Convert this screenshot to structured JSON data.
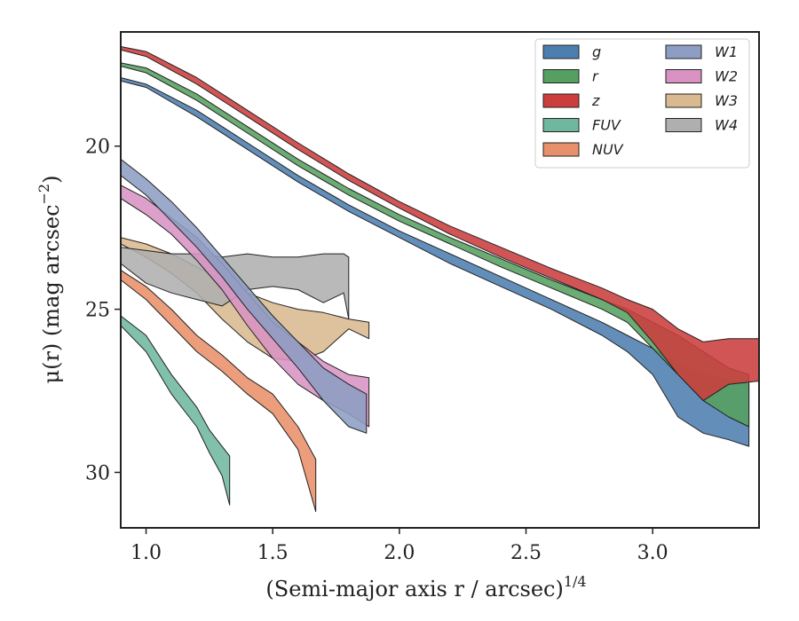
{
  "chart_data": {
    "type": "area",
    "xlabel": "(Semi-major axis r / arcsec)",
    "xlabel_exponent": "1/4",
    "ylabel": "μ(r) (mag arcsec",
    "ylabel_exponent": "−2",
    "ylabel_close": ")",
    "xlim": [
      0.9,
      3.42
    ],
    "ylim": [
      31.7,
      16.5
    ],
    "y_inverted": true,
    "xticks": [
      {
        "value": 1.0,
        "label": "1.0"
      },
      {
        "value": 1.5,
        "label": "1.5"
      },
      {
        "value": 2.0,
        "label": "2.0"
      },
      {
        "value": 2.5,
        "label": "2.5"
      },
      {
        "value": 3.0,
        "label": "3.0"
      }
    ],
    "yticks": [
      {
        "value": 20,
        "label": "20"
      },
      {
        "value": 25,
        "label": "25"
      },
      {
        "value": 30,
        "label": "30"
      }
    ],
    "grid": false,
    "legend": {
      "placement": "top-right",
      "columns": 2
    },
    "series": [
      {
        "name": "g",
        "color": "#4C7EAF",
        "points": [
          [
            0.9,
            17.9,
            18.0
          ],
          [
            1.0,
            18.1,
            18.2
          ],
          [
            1.2,
            18.9,
            19.1
          ],
          [
            1.4,
            19.9,
            20.1
          ],
          [
            1.6,
            20.9,
            21.1
          ],
          [
            1.8,
            21.8,
            22.0
          ],
          [
            2.0,
            22.6,
            22.8
          ],
          [
            2.2,
            23.3,
            23.6
          ],
          [
            2.4,
            24.0,
            24.3
          ],
          [
            2.6,
            24.7,
            25.0
          ],
          [
            2.8,
            25.4,
            25.8
          ],
          [
            2.9,
            25.8,
            26.3
          ],
          [
            3.0,
            26.2,
            27.0
          ],
          [
            3.1,
            26.7,
            28.3
          ],
          [
            3.2,
            27.0,
            28.8
          ],
          [
            3.3,
            27.2,
            29.0
          ],
          [
            3.38,
            27.3,
            29.2
          ]
        ]
      },
      {
        "name": "r",
        "color": "#55A060",
        "points": [
          [
            0.9,
            17.45,
            17.55
          ],
          [
            1.0,
            17.6,
            17.75
          ],
          [
            1.2,
            18.4,
            18.6
          ],
          [
            1.4,
            19.4,
            19.6
          ],
          [
            1.6,
            20.4,
            20.6
          ],
          [
            1.8,
            21.3,
            21.5
          ],
          [
            2.0,
            22.1,
            22.3
          ],
          [
            2.2,
            22.8,
            23.0
          ],
          [
            2.4,
            23.45,
            23.7
          ],
          [
            2.6,
            24.1,
            24.35
          ],
          [
            2.8,
            24.7,
            25.0
          ],
          [
            2.9,
            25.0,
            25.4
          ],
          [
            3.0,
            25.4,
            26.2
          ],
          [
            3.1,
            25.8,
            27.0
          ],
          [
            3.2,
            26.3,
            27.8
          ],
          [
            3.3,
            26.8,
            28.3
          ],
          [
            3.38,
            27.0,
            28.6
          ]
        ]
      },
      {
        "name": "z",
        "color": "#CC3E3E",
        "points": [
          [
            0.9,
            16.95,
            17.05
          ],
          [
            1.0,
            17.1,
            17.25
          ],
          [
            1.2,
            17.9,
            18.1
          ],
          [
            1.4,
            18.9,
            19.1
          ],
          [
            1.6,
            19.9,
            20.1
          ],
          [
            1.8,
            20.85,
            21.05
          ],
          [
            2.0,
            21.7,
            21.9
          ],
          [
            2.2,
            22.45,
            22.7
          ],
          [
            2.4,
            23.1,
            23.4
          ],
          [
            2.6,
            23.75,
            24.05
          ],
          [
            2.8,
            24.35,
            24.7
          ],
          [
            2.9,
            24.7,
            25.1
          ],
          [
            3.0,
            25.0,
            26.0
          ],
          [
            3.1,
            25.6,
            27.0
          ],
          [
            3.2,
            26.0,
            27.8
          ],
          [
            3.3,
            25.9,
            27.3
          ],
          [
            3.42,
            25.9,
            27.2
          ]
        ]
      },
      {
        "name": "FUV",
        "color": "#6FB79E",
        "points": [
          [
            0.9,
            25.2,
            25.5
          ],
          [
            1.0,
            25.8,
            26.3
          ],
          [
            1.1,
            27.0,
            27.6
          ],
          [
            1.2,
            28.0,
            28.6
          ],
          [
            1.25,
            28.7,
            29.4
          ],
          [
            1.3,
            29.2,
            30.1
          ],
          [
            1.33,
            29.5,
            31.0
          ]
        ]
      },
      {
        "name": "NUV",
        "color": "#E8906A",
        "points": [
          [
            0.9,
            23.8,
            24.1
          ],
          [
            1.0,
            24.3,
            24.7
          ],
          [
            1.1,
            25.0,
            25.5
          ],
          [
            1.2,
            25.8,
            26.3
          ],
          [
            1.3,
            26.4,
            26.9
          ],
          [
            1.4,
            27.1,
            27.6
          ],
          [
            1.5,
            27.6,
            28.2
          ],
          [
            1.6,
            28.6,
            29.3
          ],
          [
            1.67,
            29.6,
            31.2
          ]
        ]
      },
      {
        "name": "W1",
        "color": "#8D9DC3",
        "points": [
          [
            0.9,
            20.4,
            20.9
          ],
          [
            1.0,
            21.0,
            21.5
          ],
          [
            1.1,
            21.7,
            22.3
          ],
          [
            1.2,
            22.5,
            23.1
          ],
          [
            1.3,
            23.4,
            24.0
          ],
          [
            1.4,
            24.3,
            25.0
          ],
          [
            1.5,
            25.2,
            25.9
          ],
          [
            1.6,
            26.0,
            26.8
          ],
          [
            1.7,
            26.8,
            27.8
          ],
          [
            1.8,
            27.3,
            28.6
          ],
          [
            1.87,
            27.6,
            28.8
          ]
        ]
      },
      {
        "name": "W2",
        "color": "#D893C4",
        "points": [
          [
            0.9,
            21.2,
            21.6
          ],
          [
            1.0,
            21.6,
            22.1
          ],
          [
            1.1,
            22.2,
            22.7
          ],
          [
            1.2,
            22.8,
            23.5
          ],
          [
            1.3,
            23.6,
            24.4
          ],
          [
            1.4,
            24.5,
            25.5
          ],
          [
            1.5,
            25.4,
            26.5
          ],
          [
            1.6,
            26.0,
            27.3
          ],
          [
            1.7,
            26.6,
            27.8
          ],
          [
            1.8,
            27.0,
            28.2
          ],
          [
            1.88,
            27.1,
            28.6
          ]
        ]
      },
      {
        "name": "W3",
        "color": "#D9B98F",
        "points": [
          [
            0.9,
            22.8,
            23.0
          ],
          [
            1.0,
            23.0,
            23.4
          ],
          [
            1.1,
            23.3,
            23.9
          ],
          [
            1.2,
            23.7,
            24.5
          ],
          [
            1.3,
            24.1,
            25.3
          ],
          [
            1.4,
            24.5,
            26.0
          ],
          [
            1.5,
            24.8,
            26.5
          ],
          [
            1.6,
            25.0,
            26.6
          ],
          [
            1.7,
            25.1,
            26.3
          ],
          [
            1.8,
            25.3,
            25.6
          ],
          [
            1.88,
            25.4,
            25.9
          ]
        ]
      },
      {
        "name": "W4",
        "color": "#AFAFAF",
        "points": [
          [
            0.9,
            23.1,
            23.6
          ],
          [
            1.0,
            23.2,
            24.2
          ],
          [
            1.1,
            23.3,
            24.5
          ],
          [
            1.2,
            23.3,
            24.7
          ],
          [
            1.3,
            23.4,
            24.9
          ],
          [
            1.4,
            23.3,
            24.4
          ],
          [
            1.5,
            23.4,
            24.3
          ],
          [
            1.6,
            23.4,
            24.4
          ],
          [
            1.7,
            23.3,
            24.8
          ],
          [
            1.78,
            23.3,
            24.5
          ],
          [
            1.8,
            23.4,
            25.3
          ]
        ]
      }
    ]
  }
}
